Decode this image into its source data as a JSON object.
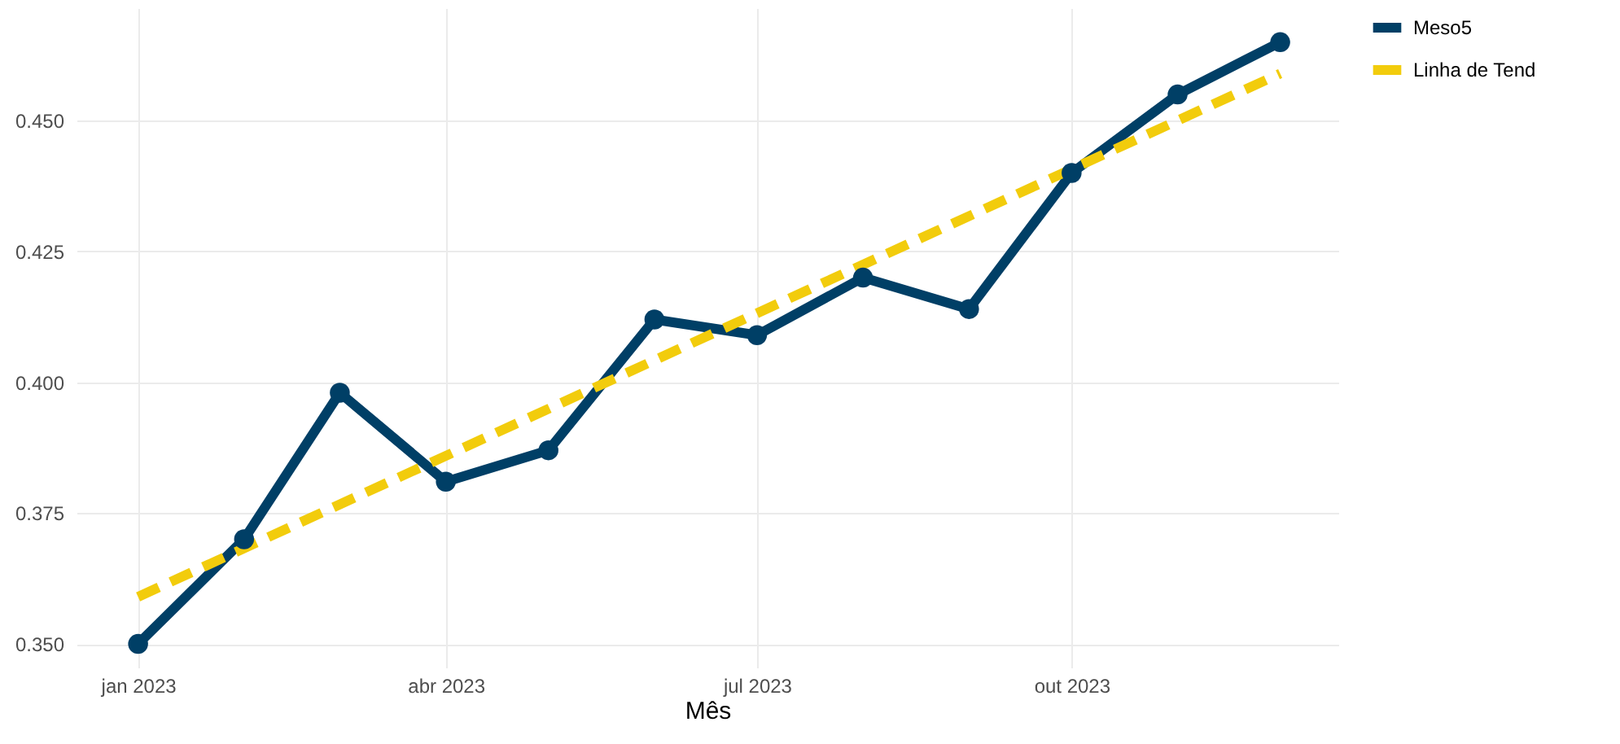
{
  "chart_data": {
    "type": "line",
    "xlabel": "Mês",
    "x": [
      "2023-01",
      "2023-02",
      "2023-03",
      "2023-04",
      "2023-05",
      "2023-06",
      "2023-07",
      "2023-08",
      "2023-09",
      "2023-10",
      "2023-11",
      "2023-12"
    ],
    "series": [
      {
        "name": "Meso5",
        "color": "#003f66",
        "values": [
          0.35,
          0.37,
          0.398,
          0.381,
          0.387,
          0.412,
          0.409,
          0.42,
          0.414,
          0.44,
          0.455,
          0.465
        ],
        "marker": "circle",
        "line_style": "solid"
      },
      {
        "name": "Linha de Tend",
        "type": "line",
        "color": "#f2cc0c",
        "x": [
          "2023-01",
          "2023-12"
        ],
        "values": [
          0.359,
          0.459
        ],
        "marker": "none",
        "line_style": "dashed"
      }
    ],
    "xlim": [
      "2022-12-14",
      "2023-12-18"
    ],
    "xticks": [
      {
        "value": "2023-01",
        "label": "jan 2023"
      },
      {
        "value": "2023-04",
        "label": "abr 2023"
      },
      {
        "value": "2023-07",
        "label": "jul 2023"
      },
      {
        "value": "2023-10",
        "label": "out 2023"
      }
    ],
    "ylim": [
      0.3455,
      0.4715
    ],
    "yticks": [
      {
        "value": 0.35,
        "label": "0.350"
      },
      {
        "value": 0.375,
        "label": "0.375"
      },
      {
        "value": 0.4,
        "label": "0.400"
      },
      {
        "value": 0.425,
        "label": "0.425"
      },
      {
        "value": 0.45,
        "label": "0.450"
      }
    ],
    "grid": true,
    "legend": "right"
  }
}
